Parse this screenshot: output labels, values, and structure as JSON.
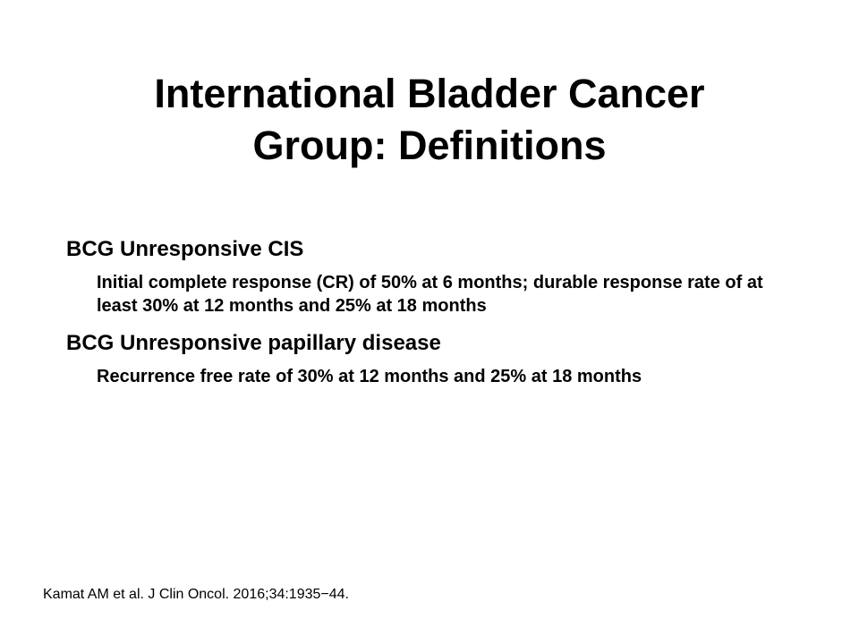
{
  "slide": {
    "title_line1": "International Bladder Cancer",
    "title_line2": "Group: Definitions",
    "sections": [
      {
        "heading": "BCG Unresponsive CIS",
        "detail": "Initial complete response (CR) of 50% at 6 months; durable response rate of at least 30% at 12 months and 25% at 18 months"
      },
      {
        "heading": "BCG Unresponsive papillary disease",
        "detail": "Recurrence free rate of 30% at 12 months and 25% at 18 months"
      }
    ],
    "citation": "Kamat AM et al. J Clin Oncol. 2016;34:1935−44."
  }
}
